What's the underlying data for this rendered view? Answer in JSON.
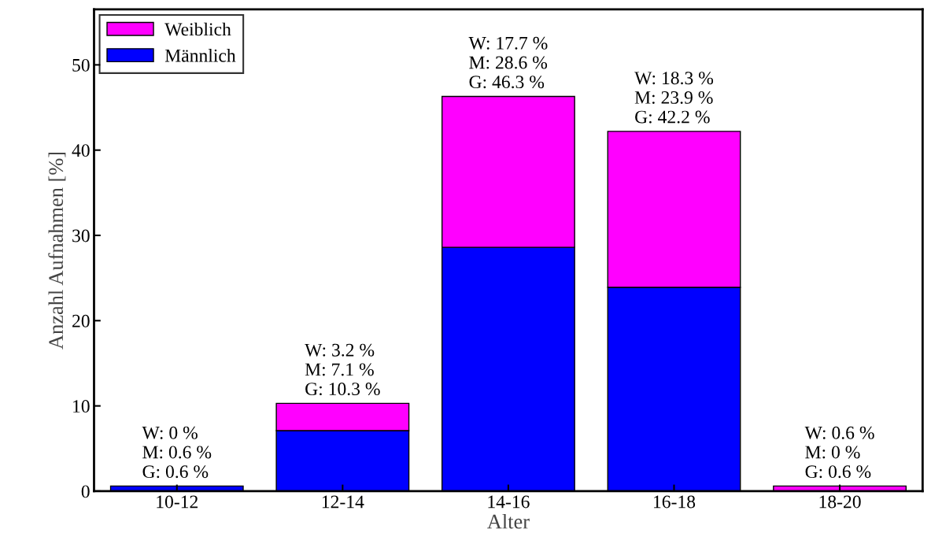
{
  "chart_data": {
    "type": "bar",
    "stacked": true,
    "xlabel": "Alter",
    "ylabel": "Anzahl Aufnahmen [%]",
    "categories": [
      "10-12",
      "12-14",
      "14-16",
      "16-18",
      "18-20"
    ],
    "series": [
      {
        "name": "Männlich",
        "color": "#0000ff",
        "values": [
          0.6,
          7.1,
          28.6,
          23.9,
          0
        ]
      },
      {
        "name": "Weiblich",
        "color": "#ff00ff",
        "values": [
          0,
          3.2,
          17.7,
          18.3,
          0.6
        ]
      }
    ],
    "ylim": [
      0,
      56.5
    ],
    "yticks": [
      0,
      10,
      20,
      30,
      40,
      50
    ],
    "grid": false,
    "legend": "top left",
    "annotations": [
      {
        "text": "W: 0 %\nM: 0.6 %\nG: 0.6 %",
        "x": "10-12",
        "y": 0.6
      },
      {
        "text": "W: 3.2 %\nM: 7.1 %\nG: 10.3 %",
        "x": "12-14",
        "y": 10.3
      },
      {
        "text": "W: 17.7 %\nM: 28.6 %\nG: 46.3 %",
        "x": "14-16",
        "y": 46.3
      },
      {
        "text": "W: 18.3 %\nM: 23.9 %\nG: 42.2 %",
        "x": "16-18",
        "y": 42.2
      },
      {
        "text": "W: 0.6 %\nM: 0 %\nG: 0.6 %",
        "x": "18-20",
        "y": 0.6
      }
    ]
  }
}
